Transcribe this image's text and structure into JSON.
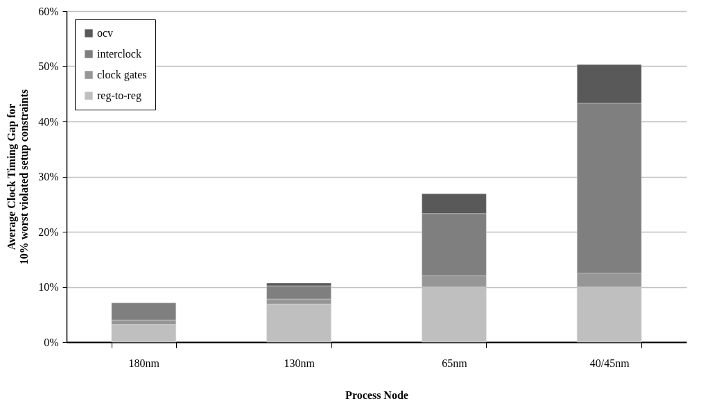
{
  "chart_data": {
    "type": "bar",
    "stacked": true,
    "xlabel": "Process Node",
    "ylabel": "Average Clock Timing Gap for\n10% worst violated setup constraints",
    "categories": [
      "180nm",
      "130nm",
      "65nm",
      "40/45nm"
    ],
    "series": [
      {
        "name": "reg-to-reg",
        "color": "#bfbfbf",
        "values": [
          3.2,
          6.9,
          10.0,
          10.0
        ]
      },
      {
        "name": "clock gates",
        "color": "#969696",
        "values": [
          0.8,
          0.9,
          2.0,
          2.5
        ]
      },
      {
        "name": "interclock",
        "color": "#7f7f7f",
        "values": [
          3.1,
          2.4,
          11.3,
          30.8
        ]
      },
      {
        "name": "ocv",
        "color": "#595959",
        "values": [
          null,
          0.5,
          3.6,
          7.0
        ]
      }
    ],
    "ylim": [
      0,
      60
    ],
    "yticks": [
      {
        "value": 0,
        "label": "0%"
      },
      {
        "value": 10,
        "label": "10%"
      },
      {
        "value": 20,
        "label": "20%"
      },
      {
        "value": 30,
        "label": "30%"
      },
      {
        "value": 40,
        "label": "40%"
      },
      {
        "value": 50,
        "label": "50%"
      },
      {
        "value": 60,
        "label": "60%"
      }
    ],
    "grid": "y",
    "legend": "top left"
  }
}
